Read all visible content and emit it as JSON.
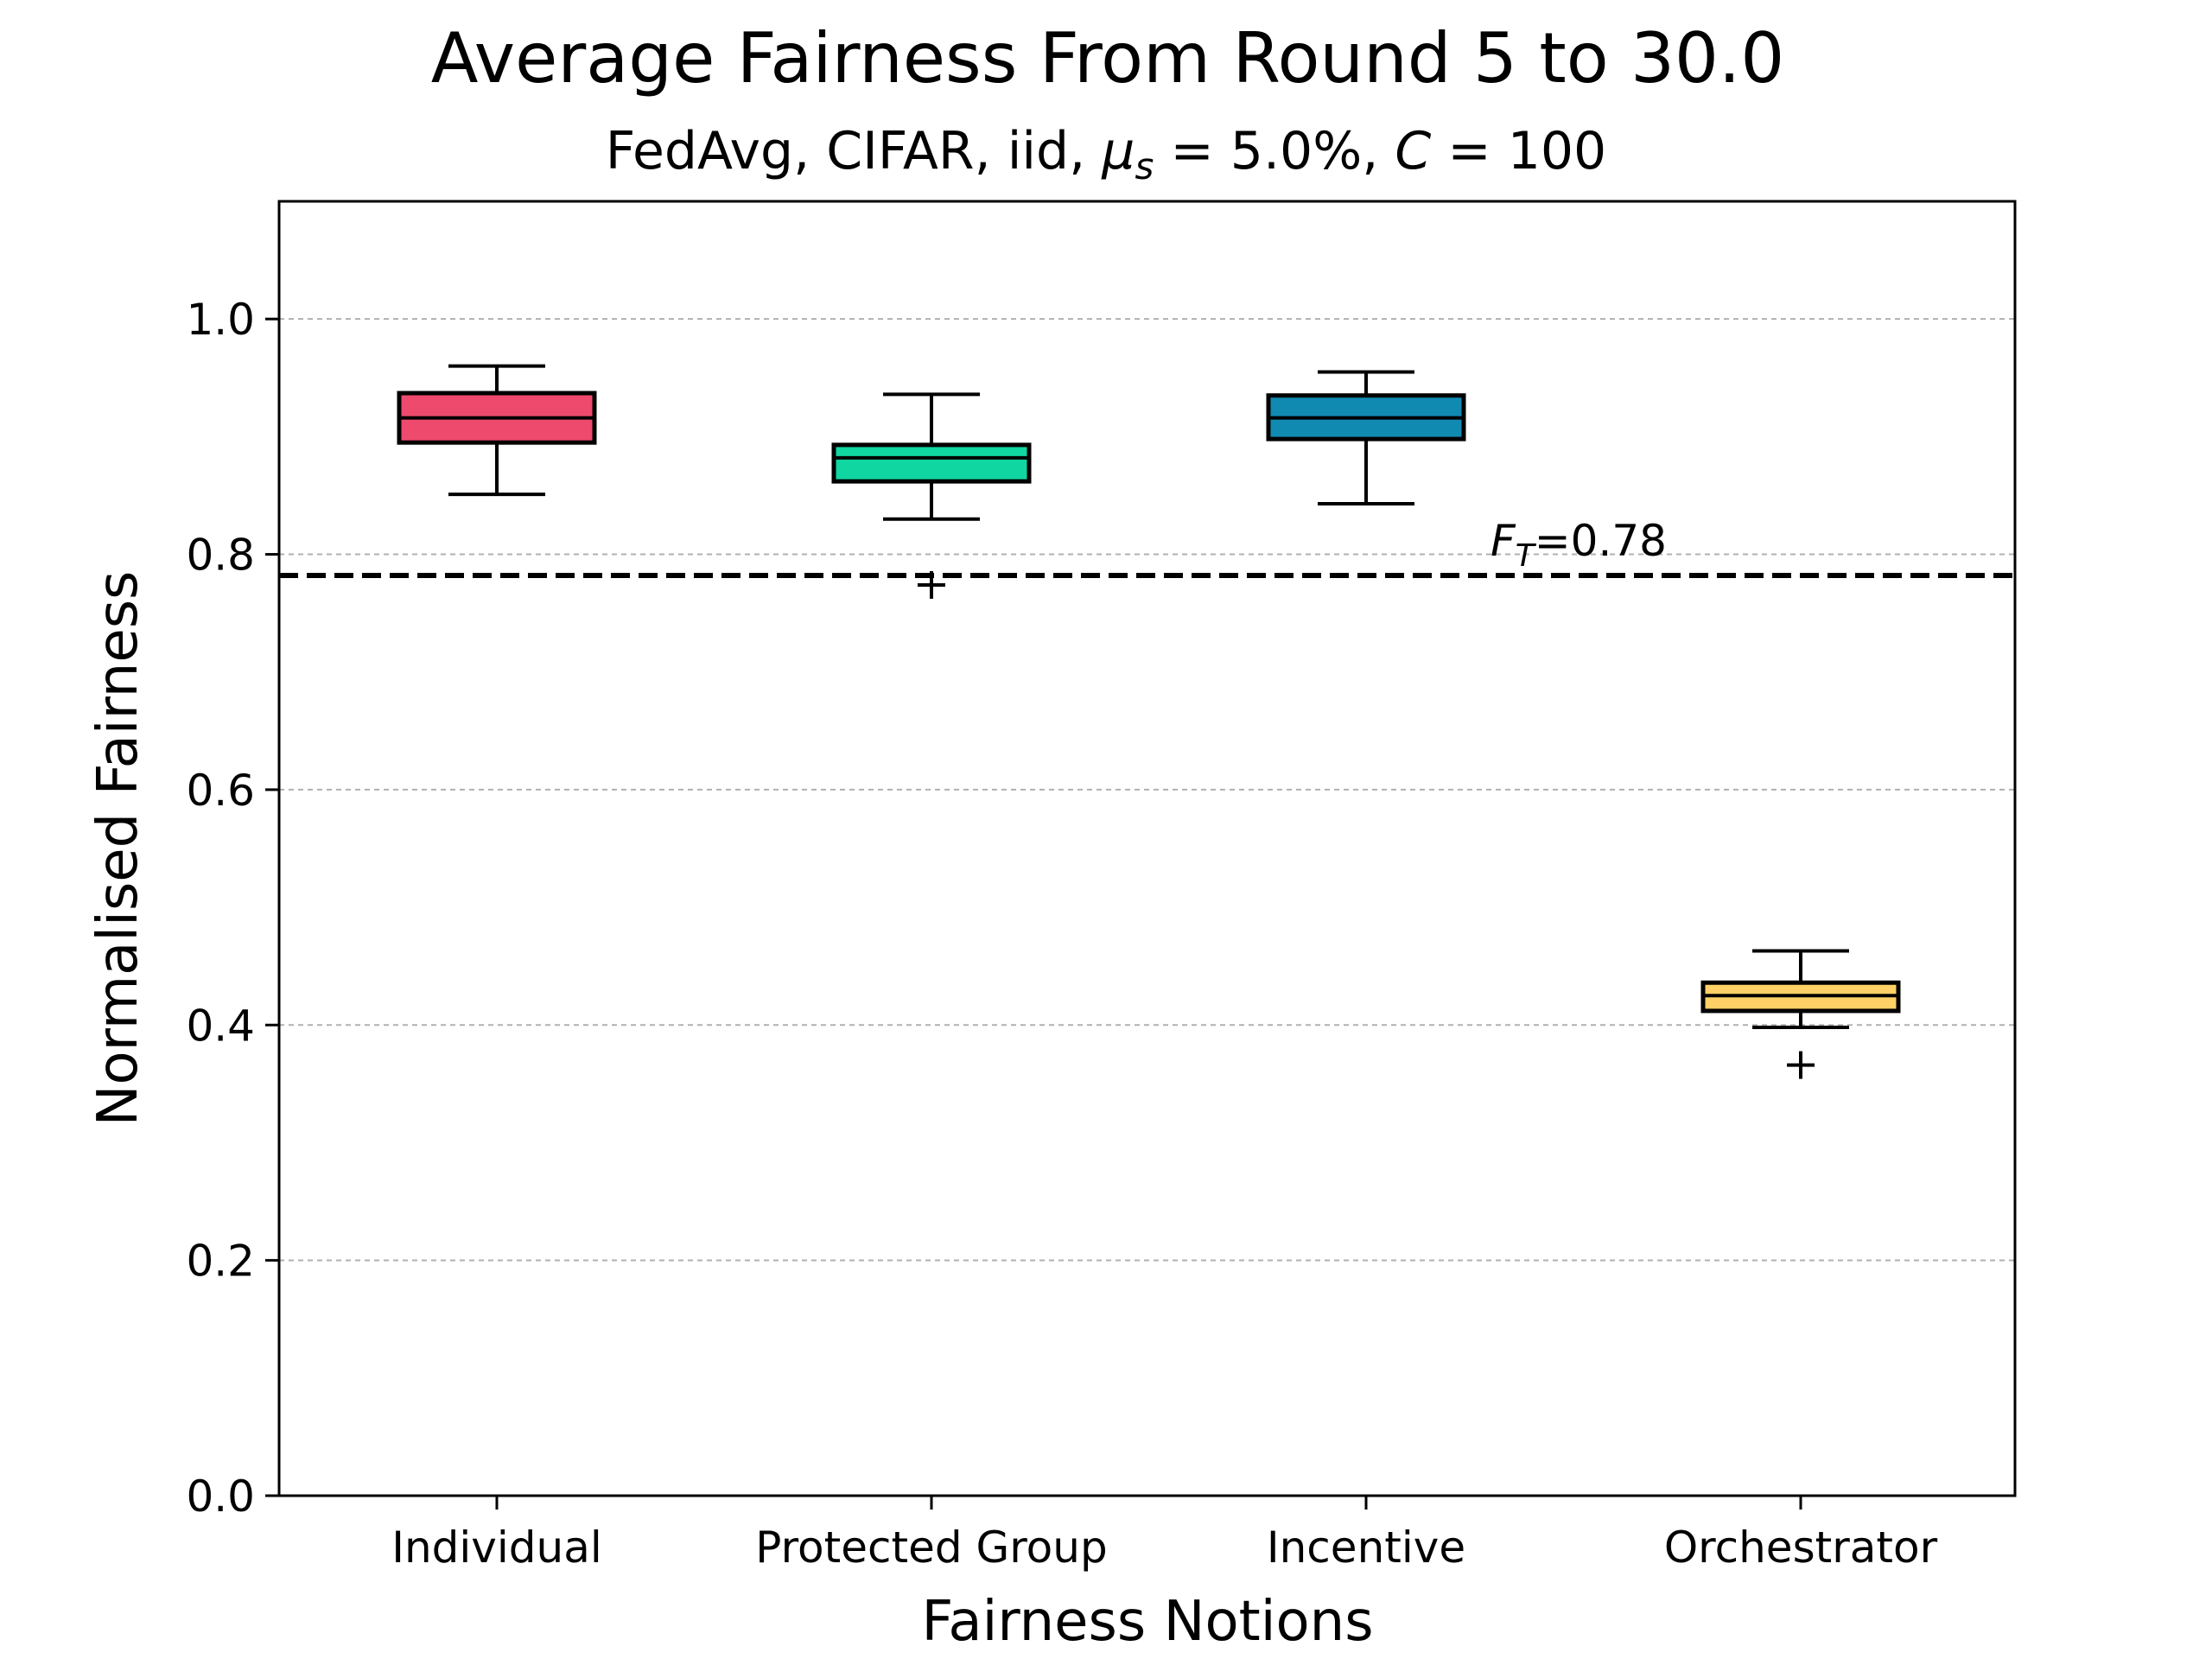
{
  "chart_data": {
    "type": "box",
    "title": "Average Fairness From Round 5 to 30.0",
    "subtitle_prefix": "FedAvg, CIFAR, iid, ",
    "subtitle_mu_symbol": "μ",
    "subtitle_mu_sub": "s",
    "subtitle_mu_value": " = 5.0%, ",
    "subtitle_c_symbol": "C",
    "subtitle_c_value": " = 100",
    "xlabel": "Fairness Notions",
    "ylabel": "Normalised Fairness",
    "ylim": [
      0.0,
      1.1
    ],
    "yticks": [
      0.0,
      0.2,
      0.4,
      0.6,
      0.8,
      1.0
    ],
    "ytick_labels": [
      "0.0",
      "0.2",
      "0.4",
      "0.6",
      "0.8",
      "1.0"
    ],
    "grid": "horizontal dashed at y ticks",
    "categories": [
      "Individual",
      "Protected Group",
      "Incentive",
      "Orchestrator"
    ],
    "boxes": [
      {
        "category": "Individual",
        "whisker_low": 0.851,
        "q1": 0.895,
        "median": 0.916,
        "q3": 0.937,
        "whisker_high": 0.96,
        "outliers": [],
        "color": "#ee4a6e"
      },
      {
        "category": "Protected Group",
        "whisker_low": 0.83,
        "q1": 0.862,
        "median": 0.882,
        "q3": 0.893,
        "whisker_high": 0.936,
        "outliers": [
          0.774
        ],
        "color": "#10d6a2"
      },
      {
        "category": "Incentive",
        "whisker_low": 0.843,
        "q1": 0.898,
        "median": 0.916,
        "q3": 0.935,
        "whisker_high": 0.955,
        "outliers": [],
        "color": "#118ab2"
      },
      {
        "category": "Orchestrator",
        "whisker_low": 0.398,
        "q1": 0.412,
        "median": 0.425,
        "q3": 0.436,
        "whisker_high": 0.463,
        "outliers": [
          0.366
        ],
        "color": "#ffd166"
      }
    ],
    "threshold": {
      "value": 0.782,
      "label_symbol": "F",
      "label_sub": "T",
      "label_value": "=0.78",
      "style": "dashed"
    }
  }
}
